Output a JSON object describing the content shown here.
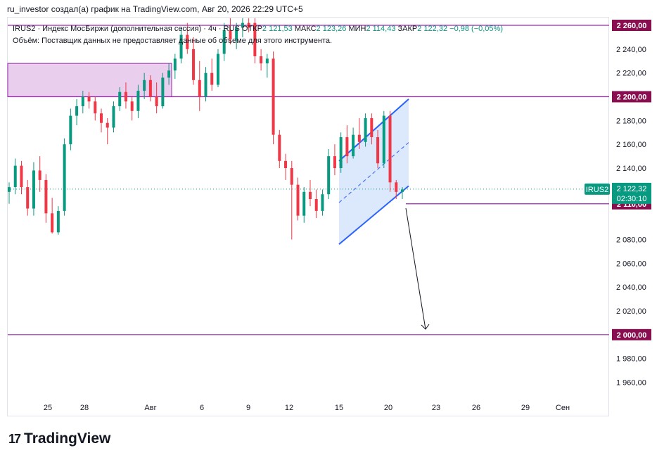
{
  "header": {
    "attribution": "ru_investor создал(а) график на TradingView.com, Авг 20, 2026 22:29 UTC+5"
  },
  "legend": {
    "symbol_line": "IRUS2 · Индекс МосБиржи (дополнительная сессия) · 4ч · RUS",
    "open_label": "ОТКР",
    "open_value": "2 121,53",
    "high_label": "МАКС",
    "high_value": "2 123,26",
    "low_label": "МИН",
    "low_value": "2 114,43",
    "close_label": "ЗАКР",
    "close_value": "2 122,32",
    "change_value": "−0,98 (−0,05%)",
    "volume_note": "Объём: Поставщик данных не предоставляет данные об объеме для этого инструмента."
  },
  "colors": {
    "up": "#089981",
    "down": "#f23645",
    "level_line": "#9c27b0",
    "zone_fill": "#e1bee7",
    "channel_fill": "#d6e4fb",
    "channel_line": "#2962ff",
    "price_badge": "#089981",
    "level_badge": "#880e4f"
  },
  "brand": {
    "name": "TradingView",
    "logo_mark": "17"
  },
  "chart_data": {
    "type": "candlestick",
    "symbol": "IRUS2",
    "timeframe": "4ч",
    "y_ticks": [
      2240,
      2220,
      2180,
      2160,
      2140,
      2080,
      2060,
      2040,
      2020,
      1980,
      1960
    ],
    "y_tick_labels": [
      "2 240,00",
      "2 220,00",
      "2 180,00",
      "2 160,00",
      "2 140,00",
      "2 080,00",
      "2 060,00",
      "2 040,00",
      "2 020,00",
      "1 980,00",
      "1 960,00"
    ],
    "ylim": [
      1950,
      2265
    ],
    "x_ticks": [
      "25",
      "28",
      "Авг",
      "6",
      "9",
      "12",
      "15",
      "20",
      "23",
      "26",
      "29",
      "Сен"
    ],
    "levels": [
      {
        "value": 2260,
        "label": "2 260,00"
      },
      {
        "value": 2200,
        "label": "2 200,00"
      },
      {
        "value": 2110,
        "label": "2 110,00"
      },
      {
        "value": 2000,
        "label": "2 000,00"
      }
    ],
    "current_price": {
      "value": 2122.32,
      "label": "2 122,32",
      "countdown": "02:30:10",
      "symbol": "IRUS2"
    },
    "zone": {
      "from": 2200,
      "to": 2228
    },
    "channel": {
      "lower_start": 2076,
      "lower_end": 2125,
      "upper_start": 2146,
      "upper_end": 2198
    },
    "arrow_target": 2020,
    "candles": [
      {
        "o": 2120,
        "h": 2128,
        "l": 2110,
        "c": 2124
      },
      {
        "o": 2124,
        "h": 2148,
        "l": 2118,
        "c": 2142
      },
      {
        "o": 2142,
        "h": 2146,
        "l": 2118,
        "c": 2124
      },
      {
        "o": 2124,
        "h": 2130,
        "l": 2100,
        "c": 2106
      },
      {
        "o": 2106,
        "h": 2145,
        "l": 2100,
        "c": 2138
      },
      {
        "o": 2138,
        "h": 2150,
        "l": 2120,
        "c": 2130
      },
      {
        "o": 2130,
        "h": 2135,
        "l": 2094,
        "c": 2102
      },
      {
        "o": 2102,
        "h": 2115,
        "l": 2085,
        "c": 2086
      },
      {
        "o": 2086,
        "h": 2108,
        "l": 2084,
        "c": 2104
      },
      {
        "o": 2104,
        "h": 2165,
        "l": 2100,
        "c": 2160
      },
      {
        "o": 2160,
        "h": 2190,
        "l": 2155,
        "c": 2184
      },
      {
        "o": 2184,
        "h": 2198,
        "l": 2176,
        "c": 2192
      },
      {
        "o": 2192,
        "h": 2205,
        "l": 2186,
        "c": 2200
      },
      {
        "o": 2200,
        "h": 2204,
        "l": 2190,
        "c": 2196
      },
      {
        "o": 2196,
        "h": 2200,
        "l": 2180,
        "c": 2186
      },
      {
        "o": 2186,
        "h": 2190,
        "l": 2170,
        "c": 2178
      },
      {
        "o": 2178,
        "h": 2182,
        "l": 2160,
        "c": 2174
      },
      {
        "o": 2174,
        "h": 2196,
        "l": 2170,
        "c": 2192
      },
      {
        "o": 2192,
        "h": 2208,
        "l": 2188,
        "c": 2204
      },
      {
        "o": 2204,
        "h": 2212,
        "l": 2190,
        "c": 2196
      },
      {
        "o": 2196,
        "h": 2200,
        "l": 2180,
        "c": 2188
      },
      {
        "o": 2188,
        "h": 2210,
        "l": 2182,
        "c": 2205
      },
      {
        "o": 2205,
        "h": 2220,
        "l": 2198,
        "c": 2214
      },
      {
        "o": 2214,
        "h": 2218,
        "l": 2196,
        "c": 2200
      },
      {
        "o": 2200,
        "h": 2212,
        "l": 2186,
        "c": 2192
      },
      {
        "o": 2192,
        "h": 2220,
        "l": 2190,
        "c": 2216
      },
      {
        "o": 2216,
        "h": 2228,
        "l": 2210,
        "c": 2222
      },
      {
        "o": 2222,
        "h": 2236,
        "l": 2215,
        "c": 2232
      },
      {
        "o": 2232,
        "h": 2258,
        "l": 2228,
        "c": 2252
      },
      {
        "o": 2252,
        "h": 2262,
        "l": 2236,
        "c": 2240
      },
      {
        "o": 2240,
        "h": 2250,
        "l": 2210,
        "c": 2214
      },
      {
        "o": 2214,
        "h": 2230,
        "l": 2188,
        "c": 2200
      },
      {
        "o": 2200,
        "h": 2225,
        "l": 2196,
        "c": 2220
      },
      {
        "o": 2220,
        "h": 2232,
        "l": 2205,
        "c": 2210
      },
      {
        "o": 2210,
        "h": 2240,
        "l": 2208,
        "c": 2236
      },
      {
        "o": 2236,
        "h": 2262,
        "l": 2230,
        "c": 2256
      },
      {
        "o": 2256,
        "h": 2266,
        "l": 2244,
        "c": 2248
      },
      {
        "o": 2248,
        "h": 2262,
        "l": 2240,
        "c": 2258
      },
      {
        "o": 2258,
        "h": 2266,
        "l": 2250,
        "c": 2262
      },
      {
        "o": 2262,
        "h": 2266,
        "l": 2254,
        "c": 2258
      },
      {
        "o": 2262,
        "h": 2266,
        "l": 2228,
        "c": 2234
      },
      {
        "o": 2234,
        "h": 2240,
        "l": 2222,
        "c": 2228
      },
      {
        "o": 2228,
        "h": 2236,
        "l": 2216,
        "c": 2232
      },
      {
        "o": 2232,
        "h": 2238,
        "l": 2160,
        "c": 2168
      },
      {
        "o": 2168,
        "h": 2172,
        "l": 2140,
        "c": 2146
      },
      {
        "o": 2146,
        "h": 2152,
        "l": 2130,
        "c": 2140
      },
      {
        "o": 2140,
        "h": 2146,
        "l": 2080,
        "c": 2126
      },
      {
        "o": 2126,
        "h": 2132,
        "l": 2096,
        "c": 2100
      },
      {
        "o": 2100,
        "h": 2124,
        "l": 2094,
        "c": 2120
      },
      {
        "o": 2120,
        "h": 2130,
        "l": 2108,
        "c": 2114
      },
      {
        "o": 2114,
        "h": 2122,
        "l": 2098,
        "c": 2104
      },
      {
        "o": 2104,
        "h": 2122,
        "l": 2100,
        "c": 2118
      },
      {
        "o": 2118,
        "h": 2156,
        "l": 2114,
        "c": 2150
      },
      {
        "o": 2150,
        "h": 2160,
        "l": 2134,
        "c": 2140
      },
      {
        "o": 2140,
        "h": 2170,
        "l": 2136,
        "c": 2166
      },
      {
        "o": 2166,
        "h": 2176,
        "l": 2144,
        "c": 2150
      },
      {
        "o": 2150,
        "h": 2174,
        "l": 2148,
        "c": 2168
      },
      {
        "o": 2168,
        "h": 2182,
        "l": 2156,
        "c": 2162
      },
      {
        "o": 2162,
        "h": 2186,
        "l": 2158,
        "c": 2182
      },
      {
        "o": 2182,
        "h": 2186,
        "l": 2160,
        "c": 2166
      },
      {
        "o": 2166,
        "h": 2172,
        "l": 2140,
        "c": 2144
      },
      {
        "o": 2144,
        "h": 2188,
        "l": 2140,
        "c": 2184
      },
      {
        "o": 2184,
        "h": 2188,
        "l": 2120,
        "c": 2128
      },
      {
        "o": 2128,
        "h": 2130,
        "l": 2114,
        "c": 2120
      },
      {
        "o": 2120,
        "h": 2124,
        "l": 2114,
        "c": 2122
      }
    ]
  }
}
